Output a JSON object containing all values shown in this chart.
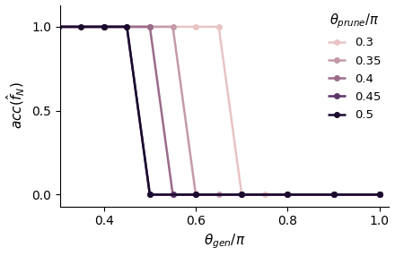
{
  "series": [
    {
      "label": "0.3",
      "color": "#e8c4c4",
      "x": [
        0.3,
        0.4,
        0.5,
        0.6,
        0.65,
        0.7,
        0.75,
        0.8,
        0.9,
        1.0
      ],
      "y": [
        1.0,
        1.0,
        1.0,
        1.0,
        1.0,
        0.0,
        0.0,
        0.0,
        0.0,
        0.0
      ]
    },
    {
      "label": "0.35",
      "color": "#c49aaa",
      "x": [
        0.3,
        0.4,
        0.5,
        0.55,
        0.6,
        0.65,
        0.7,
        0.8,
        0.9,
        1.0
      ],
      "y": [
        1.0,
        1.0,
        1.0,
        1.0,
        0.0,
        0.0,
        0.0,
        0.0,
        0.0,
        0.0
      ]
    },
    {
      "label": "0.4",
      "color": "#9b6b8a",
      "x": [
        0.3,
        0.4,
        0.5,
        0.55,
        0.6,
        0.7,
        0.8,
        0.9,
        1.0
      ],
      "y": [
        1.0,
        1.0,
        1.0,
        0.0,
        0.0,
        0.0,
        0.0,
        0.0,
        0.0
      ]
    },
    {
      "label": "0.45",
      "color": "#5c3566",
      "x": [
        0.3,
        0.4,
        0.45,
        0.5,
        0.55,
        0.6,
        0.7,
        0.8,
        0.9,
        1.0
      ],
      "y": [
        1.0,
        1.0,
        1.0,
        0.0,
        0.0,
        0.0,
        0.0,
        0.0,
        0.0,
        0.0
      ]
    },
    {
      "label": "0.5",
      "color": "#1a0a2e",
      "x": [
        0.3,
        0.35,
        0.4,
        0.45,
        0.5,
        0.6,
        0.7,
        0.8,
        0.9,
        1.0
      ],
      "y": [
        1.0,
        1.0,
        1.0,
        1.0,
        0.0,
        0.0,
        0.0,
        0.0,
        0.0,
        0.0
      ]
    }
  ],
  "xlabel": "$\\theta_{gen}/\\pi$",
  "ylabel": "$acc(\\hat{f}_N)$",
  "legend_title": "$\\theta_{prune}/\\pi$",
  "xlim": [
    0.305,
    1.02
  ],
  "ylim": [
    -0.07,
    1.13
  ],
  "xticks": [
    0.4,
    0.6,
    0.8,
    1.0
  ],
  "yticks": [
    0.0,
    0.5,
    1.0
  ]
}
